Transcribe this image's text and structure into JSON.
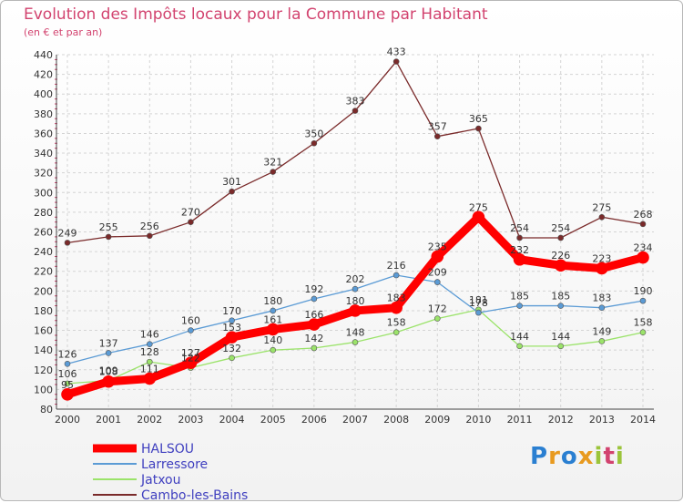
{
  "header": {
    "title": "Evolution des Impôts locaux pour la Commune par Habitant",
    "subtitle": "(en € et par an)"
  },
  "logo": {
    "letters": [
      "P",
      "r",
      "o",
      "x",
      "i",
      "t",
      "i"
    ],
    "colors": [
      "#2a7fd1",
      "#e89a1f",
      "#2a7fd1",
      "#e89a1f",
      "#9bc43a",
      "#d2436f",
      "#9bc43a"
    ]
  },
  "chart_data": {
    "type": "line",
    "title": "Evolution des Impôts locaux pour la Commune par Habitant",
    "subtitle": "(en € et par an)",
    "x": [
      2000,
      2001,
      2002,
      2003,
      2004,
      2005,
      2006,
      2007,
      2008,
      2009,
      2010,
      2011,
      2012,
      2013,
      2014
    ],
    "x_tick_labels": [
      "2000",
      "2001",
      "2002",
      "2003",
      "2004",
      "2005",
      "2006",
      "2007",
      "2008",
      "2009",
      "2010",
      "2011",
      "2012",
      "2013",
      "2014"
    ],
    "ylim": [
      80,
      440
    ],
    "y_ticks": [
      80,
      100,
      120,
      140,
      160,
      180,
      200,
      220,
      240,
      260,
      280,
      300,
      320,
      340,
      360,
      380,
      400,
      420,
      440
    ],
    "y_tick_labels": [
      "80",
      "100",
      "120",
      "140",
      "160",
      "180",
      "200",
      "220",
      "240",
      "260",
      "280",
      "300",
      "320",
      "340",
      "360",
      "380",
      "400",
      "420",
      "440"
    ],
    "grid": true,
    "legend_position": "bottom-left",
    "series": [
      {
        "name": "Cambo-les-Bains",
        "color": "#7a2a2a",
        "values": [
          249,
          255,
          256,
          270,
          301,
          321,
          350,
          383,
          433,
          357,
          365,
          254,
          254,
          275,
          268
        ],
        "labels": [
          "249",
          "255",
          "256",
          "270",
          "301",
          "321",
          "350",
          "383",
          "433",
          "357",
          "365",
          "254",
          "254",
          "275",
          "268"
        ]
      },
      {
        "name": "Jatxou",
        "color": "#9be36a",
        "values": [
          106,
          109,
          128,
          122,
          132,
          140,
          142,
          148,
          158,
          172,
          181,
          144,
          144,
          149,
          158
        ],
        "labels": [
          "106",
          "109",
          "128",
          "122",
          "132",
          "140",
          "142",
          "148",
          "158",
          "172",
          "181",
          "144",
          "144",
          "149",
          "158"
        ]
      },
      {
        "name": "Larressore",
        "color": "#5b9bd5",
        "values": [
          126,
          137,
          146,
          160,
          170,
          180,
          192,
          202,
          216,
          209,
          178,
          185,
          185,
          183,
          190
        ],
        "labels": [
          "126",
          "137",
          "146",
          "160",
          "170",
          "180",
          "192",
          "202",
          "216",
          "209",
          "178",
          "185",
          "185",
          "183",
          "190"
        ]
      },
      {
        "name": "HALSOU",
        "color": "#ff0000",
        "values": [
          95,
          108,
          111,
          127,
          153,
          161,
          166,
          180,
          183,
          235,
          275,
          232,
          226,
          223,
          234
        ],
        "labels": [
          "95",
          "108",
          "111",
          "127",
          "153",
          "161",
          "166",
          "180",
          "183",
          "235",
          "275",
          "232",
          "226",
          "223",
          "234"
        ]
      }
    ],
    "legend": [
      "HALSOU",
      "Larressore",
      "Jatxou",
      "Cambo-les-Bains"
    ]
  }
}
